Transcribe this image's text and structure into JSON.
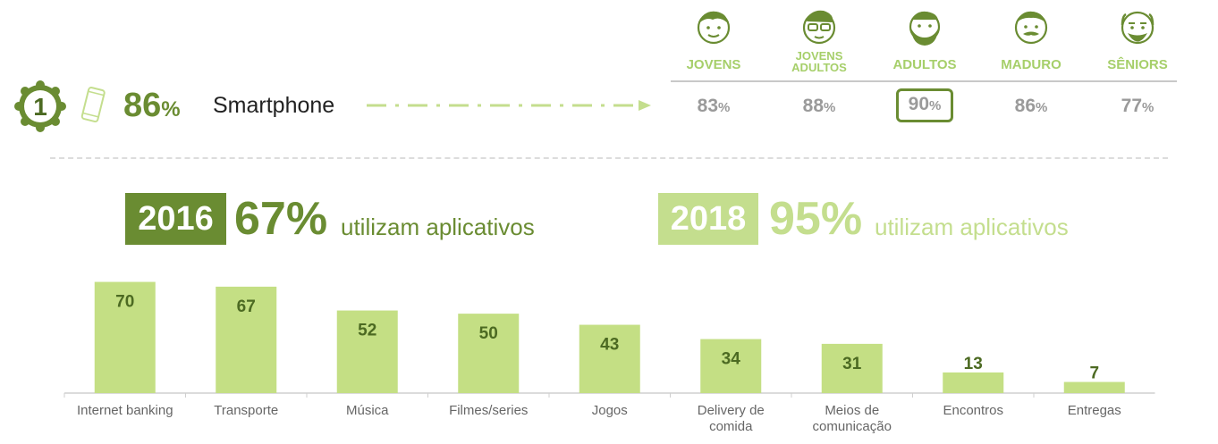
{
  "header": {
    "rank": "1",
    "percent": "86",
    "percent_sign": "%",
    "device": "Smartphone"
  },
  "age_groups": [
    {
      "label_line1": "JOVENS",
      "label_line2": "",
      "value": "83",
      "sign": "%",
      "highlight": false,
      "icon": "young-face-icon"
    },
    {
      "label_line1": "JOVENS",
      "label_line2": "ADULTOS",
      "value": "88",
      "sign": "%",
      "highlight": false,
      "icon": "young-adult-glasses-face-icon"
    },
    {
      "label_line1": "ADULTOS",
      "label_line2": "",
      "value": "90",
      "sign": "%",
      "highlight": true,
      "icon": "bearded-adult-face-icon"
    },
    {
      "label_line1": "MADURO",
      "label_line2": "",
      "value": "86",
      "sign": "%",
      "highlight": false,
      "icon": "mustache-mature-face-icon"
    },
    {
      "label_line1": "SÊNIORS",
      "label_line2": "",
      "value": "77",
      "sign": "%",
      "highlight": false,
      "icon": "senior-bald-face-icon"
    }
  ],
  "years": [
    {
      "year": "2016",
      "percent": "67%",
      "text": "utilizam aplicativos"
    },
    {
      "year": "2018",
      "percent": "95%",
      "text": "utilizam aplicativos"
    }
  ],
  "colors": {
    "dark_green": "#6a8c32",
    "light_green": "#c4de8e",
    "bar_green": "#c4df84",
    "grey": "#9a9a9a"
  },
  "chart_data": {
    "type": "bar",
    "categories": [
      "Internet banking",
      "Transporte",
      "Música",
      "Filmes/series",
      "Jogos",
      "Delivery de comida",
      "Meios de comunicação",
      "Encontros",
      "Entregas"
    ],
    "category_lines": [
      [
        "Internet banking"
      ],
      [
        "Transporte"
      ],
      [
        "Música"
      ],
      [
        "Filmes/series"
      ],
      [
        "Jogos"
      ],
      [
        "Delivery de",
        "comida"
      ],
      [
        "Meios de",
        "comunicação"
      ],
      [
        "Encontros"
      ],
      [
        "Entregas"
      ]
    ],
    "values": [
      70,
      67,
      52,
      50,
      43,
      34,
      31,
      13,
      7
    ],
    "ylim": [
      0,
      72
    ],
    "grid": false,
    "legend": "none"
  }
}
